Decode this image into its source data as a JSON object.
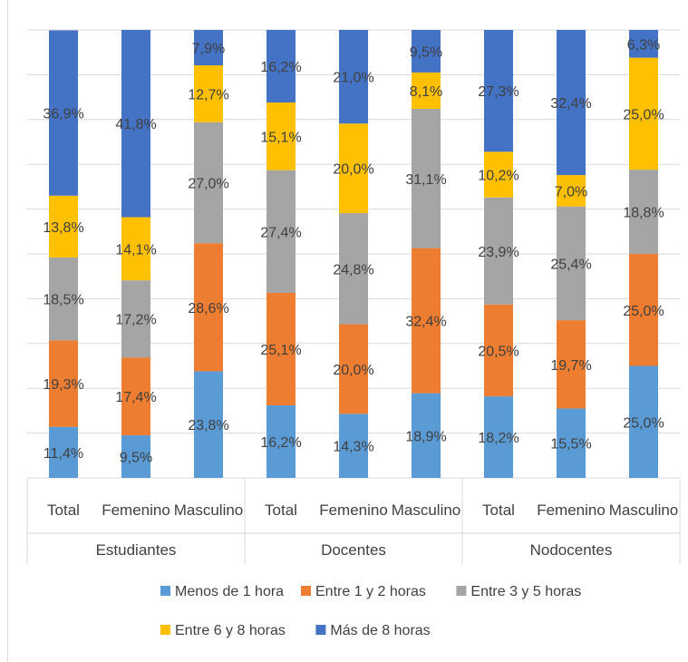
{
  "chart_data": {
    "type": "bar",
    "stacked": true,
    "normalized_percent": true,
    "title": "",
    "xlabel": "",
    "ylabel": "",
    "ylim": [
      0,
      100
    ],
    "grid": true,
    "legend_position": "bottom",
    "groups": [
      {
        "label": "Estudiantes",
        "categories": [
          "Total",
          "Femenino",
          "Masculino"
        ]
      },
      {
        "label": "Docentes",
        "categories": [
          "Total",
          "Femenino",
          "Masculino"
        ]
      },
      {
        "label": "Nodocentes",
        "categories": [
          "Total",
          "Femenino",
          "Masculino"
        ]
      }
    ],
    "categories": [
      "Total",
      "Femenino",
      "Masculino",
      "Total",
      "Femenino",
      "Masculino",
      "Total",
      "Femenino",
      "Masculino"
    ],
    "series": [
      {
        "name": "Menos de 1 hora",
        "color": "#5b9bd5",
        "values": [
          11.4,
          9.5,
          23.8,
          16.2,
          14.3,
          18.9,
          18.2,
          15.5,
          25.0
        ],
        "labels": [
          "11,4%",
          "9,5%",
          "23,8%",
          "16,2%",
          "14,3%",
          "18,9%",
          "18,2%",
          "15,5%",
          "25,0%"
        ]
      },
      {
        "name": "Entre 1 y 2 horas",
        "color": "#ed7d31",
        "values": [
          19.3,
          17.4,
          28.6,
          25.1,
          20.0,
          32.4,
          20.5,
          19.7,
          25.0
        ],
        "labels": [
          "19,3%",
          "17,4%",
          "28,6%",
          "25,1%",
          "20,0%",
          "32,4%",
          "20,5%",
          "19,7%",
          "25,0%"
        ]
      },
      {
        "name": "Entre 3 y 5 horas",
        "color": "#a5a5a5",
        "values": [
          18.5,
          17.2,
          27.0,
          27.4,
          24.8,
          31.1,
          23.9,
          25.4,
          18.8
        ],
        "labels": [
          "18,5%",
          "17,2%",
          "27,0%",
          "27,4%",
          "24,8%",
          "31,1%",
          "23,9%",
          "25,4%",
          "18,8%"
        ]
      },
      {
        "name": "Entre 6 y 8 horas",
        "color": "#ffc000",
        "values": [
          13.8,
          14.1,
          12.7,
          15.1,
          20.0,
          8.1,
          10.2,
          7.0,
          25.0
        ],
        "labels": [
          "13,8%",
          "14,1%",
          "12,7%",
          "15,1%",
          "20,0%",
          "8,1%",
          "10,2%",
          "7,0%",
          "25,0%"
        ]
      },
      {
        "name": "Más de 8 horas",
        "color": "#4472c4",
        "values": [
          36.9,
          41.8,
          7.9,
          16.2,
          21.0,
          9.5,
          27.3,
          32.4,
          6.3
        ],
        "labels": [
          "36,9%",
          "41,8%",
          "7,9%",
          "16,2%",
          "21,0%",
          "9,5%",
          "27,3%",
          "32,4%",
          "6,3%"
        ]
      }
    ]
  }
}
